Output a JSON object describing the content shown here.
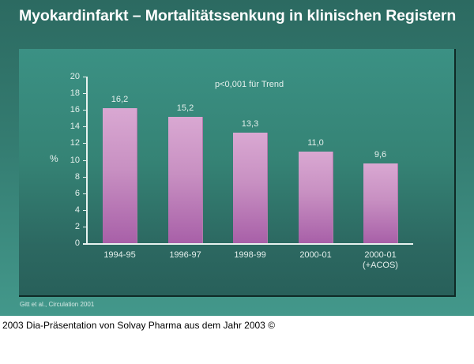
{
  "slide": {
    "title": "Myokardinfarkt – Mortalitätssenkung in klinischen Registern",
    "source": "Gitt et al., Circulation 2001",
    "caption": "2003 Dia-Präsentation von Solvay Pharma aus dem Jahr 2003 ©"
  },
  "colors": {
    "background_top": "#2c6a61",
    "background_bottom": "#43988b",
    "panel_top": "#3b9184",
    "panel_bottom": "#28605a",
    "bar_top": "#d9a8d2",
    "bar_bottom": "#a860a8",
    "text": "#e4efec"
  },
  "chart_data": {
    "type": "bar",
    "title": "Myokardinfarkt – Mortalitätssenkung in klinischen Registern",
    "categories": [
      "1994-95",
      "1996-97",
      "1998-99",
      "2000-01",
      "2000-01 (+ACOS)"
    ],
    "category_lines": [
      [
        "1994-95"
      ],
      [
        "1996-97"
      ],
      [
        "1998-99"
      ],
      [
        "2000-01"
      ],
      [
        "2000-01",
        "(+ACOS)"
      ]
    ],
    "values": [
      16.2,
      15.2,
      13.3,
      11.0,
      9.6
    ],
    "value_labels": [
      "16,2",
      "15,2",
      "13,3",
      "11,0",
      "9,6"
    ],
    "xlabel": "",
    "ylabel": "%",
    "ylim": [
      0,
      20
    ],
    "yticks": [
      0,
      2,
      4,
      6,
      8,
      10,
      12,
      14,
      16,
      18,
      20
    ],
    "grid": false,
    "legend": null,
    "annotations": [
      "p<0,001 für Trend"
    ],
    "source": "Gitt et al., Circulation 2001"
  }
}
